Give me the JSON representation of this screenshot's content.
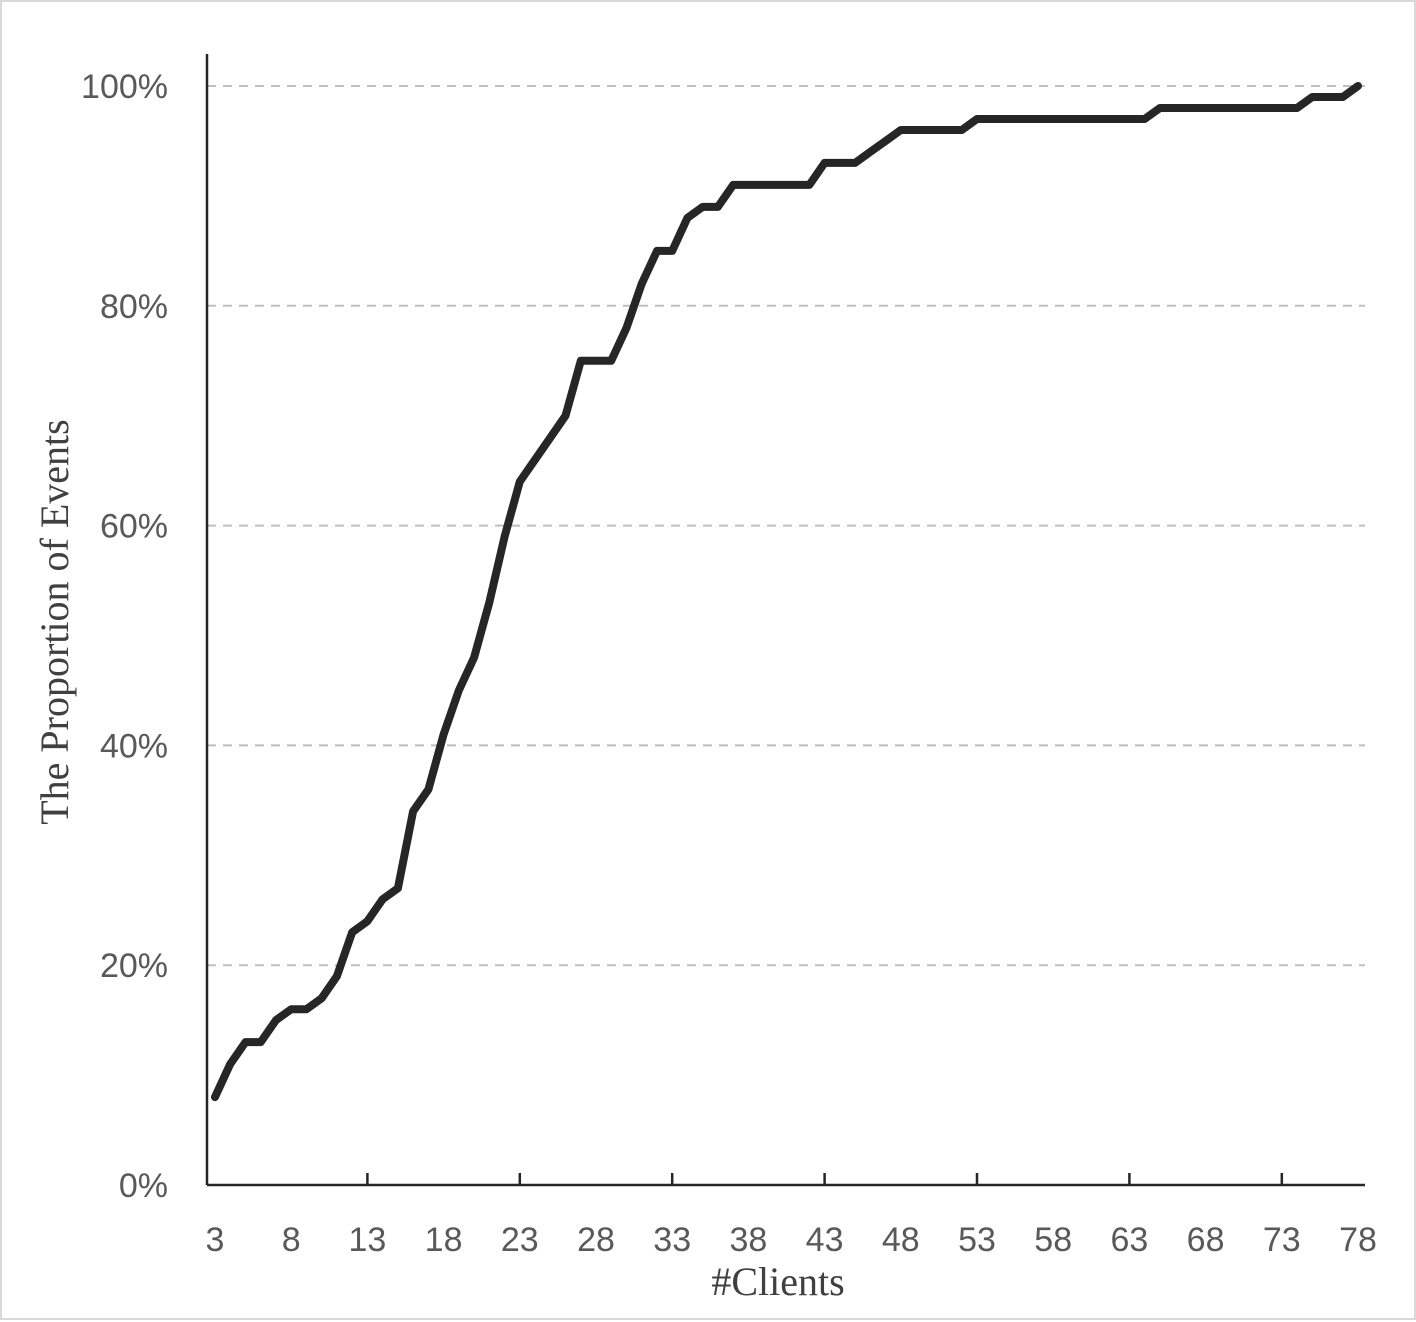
{
  "chart_data": {
    "type": "line",
    "title": "",
    "xlabel": "#Clients",
    "ylabel": "The Proportion of Events",
    "xlim": [
      3,
      78
    ],
    "ylim": [
      0,
      100
    ],
    "x_ticks": [
      3,
      8,
      13,
      18,
      23,
      28,
      33,
      38,
      43,
      48,
      53,
      58,
      63,
      68,
      73,
      78
    ],
    "x_tick_labels": [
      "3",
      "8",
      "13",
      "18",
      "23",
      "28",
      "33",
      "38",
      "43",
      "48",
      "53",
      "58",
      "63",
      "68",
      "73",
      "78"
    ],
    "y_ticks": [
      0,
      20,
      40,
      60,
      80,
      100
    ],
    "y_tick_labels": [
      "0%",
      "20%",
      "40%",
      "60%",
      "80%",
      "100%"
    ],
    "grid": "horizontal dashed",
    "legend": "none",
    "line_color": "#262626",
    "grid_color": "#bfbfbf",
    "axis_color": "#262626",
    "series": [
      {
        "x": [
          3,
          4,
          5,
          6,
          7,
          8,
          9,
          10,
          11,
          12,
          13,
          14,
          15,
          16,
          17,
          18,
          19,
          20,
          21,
          22,
          23,
          24,
          25,
          26,
          27,
          28,
          29,
          30,
          31,
          32,
          33,
          34,
          35,
          36,
          37,
          38,
          39,
          40,
          41,
          42,
          43,
          44,
          45,
          46,
          47,
          48,
          49,
          50,
          51,
          52,
          53,
          54,
          55,
          56,
          57,
          58,
          59,
          60,
          61,
          62,
          63,
          64,
          65,
          66,
          67,
          68,
          69,
          70,
          71,
          72,
          73,
          74,
          75,
          76,
          77,
          78
        ],
        "values": [
          8,
          11,
          13,
          13,
          15,
          16,
          16,
          17,
          19,
          23,
          24,
          26,
          27,
          34,
          36,
          41,
          45,
          48,
          53,
          59,
          64,
          66,
          68,
          70,
          75,
          75,
          75,
          78,
          82,
          85,
          85,
          88,
          89,
          89,
          91,
          91,
          91,
          91,
          91,
          91,
          93,
          93,
          93,
          94,
          95,
          96,
          96,
          96,
          96,
          96,
          97,
          97,
          97,
          97,
          97,
          97,
          97,
          97,
          97,
          97,
          97,
          97,
          98,
          98,
          98,
          98,
          98,
          98,
          98,
          98,
          98,
          98,
          99,
          99,
          99,
          100
        ]
      }
    ]
  }
}
